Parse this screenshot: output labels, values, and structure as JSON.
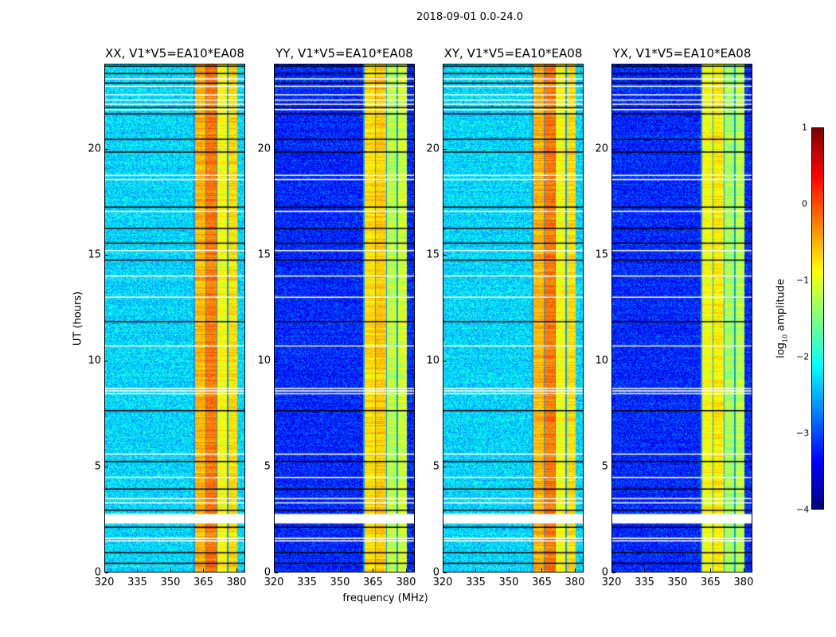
{
  "suptitle": "2018-09-01 0.0-24.0",
  "chart_data": {
    "type": "heatmap",
    "title": "2018-09-01 0.0-24.0",
    "xlabel": "frequency (MHz)",
    "ylabel": "UT (hours)",
    "xlim": [
      320,
      384
    ],
    "ylim": [
      0,
      24
    ],
    "xticks": [
      "320",
      "335",
      "350",
      "365",
      "380"
    ],
    "xtick_values": [
      320,
      335,
      350,
      365,
      380
    ],
    "yticks": [
      "0",
      "5",
      "10",
      "15",
      "20"
    ],
    "ytick_values": [
      0,
      5,
      10,
      15,
      20
    ],
    "colorbar": {
      "label_main": "log",
      "label_sub": "10",
      "label_rest": " amplitude",
      "range": [
        -4,
        1
      ],
      "ticks": [
        "1",
        "0",
        "−1",
        "−2",
        "−3",
        "−4"
      ],
      "tick_values": [
        1,
        0,
        -1,
        -2,
        -3,
        -4
      ],
      "colormap": "jet"
    },
    "panels": [
      {
        "title": "XX, V1*V5=EA10*EA08",
        "background_level": -2.3,
        "band_levels": [
          -0.5,
          -0.2,
          -0.9,
          -0.7
        ]
      },
      {
        "title": "YY, V1*V5=EA10*EA08",
        "background_level": -3.2,
        "band_levels": [
          -0.7,
          -0.6,
          -1.2,
          -1.1
        ]
      },
      {
        "title": "XY, V1*V5=EA10*EA08",
        "background_level": -2.3,
        "band_levels": [
          -0.5,
          -0.2,
          -0.9,
          -0.7
        ]
      },
      {
        "title": "YX, V1*V5=EA10*EA08",
        "background_level": -3.2,
        "band_levels": [
          -0.9,
          -0.8,
          -1.3,
          -1.2
        ]
      }
    ],
    "band_edges_mhz": [
      360,
      365.2,
      370.3,
      375.3,
      380
    ],
    "flagged_white_hours": [
      [
        2.35,
        2.8
      ],
      [
        1.5,
        1.56
      ],
      [
        1.62,
        1.68
      ],
      [
        3.3,
        3.35
      ],
      [
        3.5,
        3.55
      ],
      [
        4.5,
        4.55
      ],
      [
        5.6,
        5.65
      ],
      [
        8.45,
        8.5
      ],
      [
        8.58,
        8.63
      ],
      [
        8.7,
        8.75
      ],
      [
        10.7,
        10.75
      ],
      [
        13.0,
        13.05
      ],
      [
        14.0,
        14.05
      ],
      [
        15.2,
        15.25
      ],
      [
        17.05,
        17.1
      ],
      [
        18.55,
        18.6
      ],
      [
        18.75,
        18.8
      ],
      [
        21.85,
        21.9
      ],
      [
        22.1,
        22.15
      ],
      [
        22.3,
        22.35
      ],
      [
        22.55,
        22.6
      ],
      [
        22.95,
        23.0
      ],
      [
        23.3,
        23.35
      ]
    ],
    "flagged_black_hours": [
      0.5,
      1.0,
      2.2,
      3.0,
      4.0,
      5.3,
      7.7,
      11.9,
      14.8,
      15.6,
      16.3,
      17.3,
      19.9,
      20.5,
      21.7,
      22.0,
      23.15,
      23.6,
      23.95
    ]
  }
}
